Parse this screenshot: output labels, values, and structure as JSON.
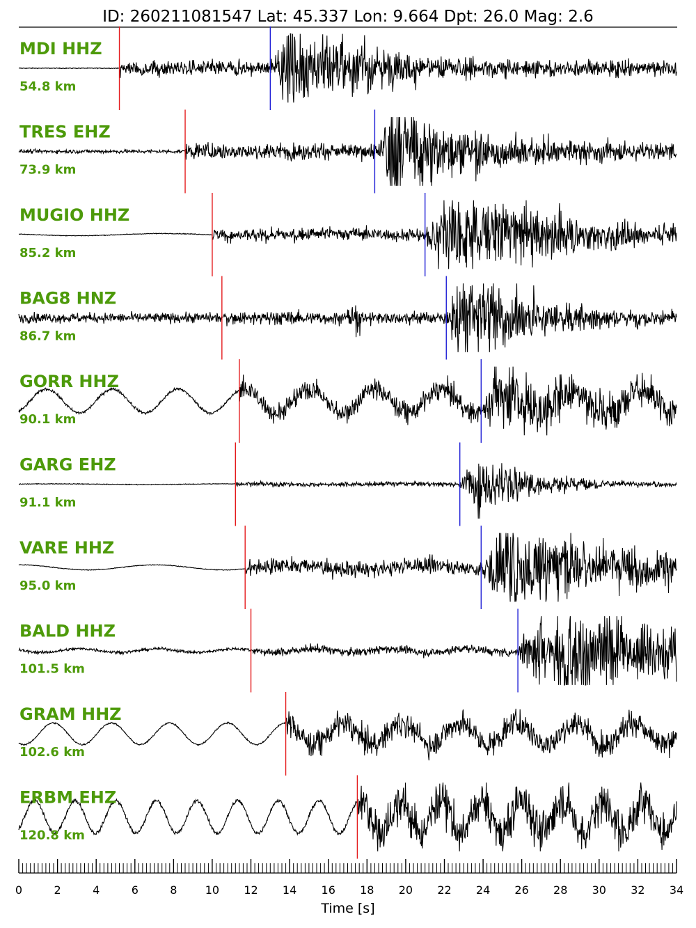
{
  "title": "ID: 260211081547 Lat:  45.337 Lon:   9.664 Dpt:    26.0 Mag:   2.6",
  "colors": {
    "label": "#4d9a0a",
    "p_pick": "#e41a1c",
    "s_pick": "#1f1fd6",
    "trace": "#000000"
  },
  "chart_data": {
    "type": "line",
    "xlabel": "Time [s]",
    "xlim": [
      0,
      34
    ],
    "xticks": [
      "0",
      "2",
      "4",
      "6",
      "8",
      "10",
      "12",
      "14",
      "16",
      "18",
      "20",
      "22",
      "24",
      "26",
      "28",
      "30",
      "32",
      "34"
    ],
    "traces": [
      {
        "station": "MDI HHZ",
        "distance": "54.8 km",
        "p_time": 5.2,
        "s_time": 13.0
      },
      {
        "station": "TRES EHZ",
        "distance": "73.9 km",
        "p_time": 8.6,
        "s_time": 18.4
      },
      {
        "station": "MUGIO HHZ",
        "distance": "85.2 km",
        "p_time": 10.0,
        "s_time": 21.0
      },
      {
        "station": "BAG8 HNZ",
        "distance": "86.7 km",
        "p_time": 10.5,
        "s_time": 22.1
      },
      {
        "station": "GORR HHZ",
        "distance": "90.1 km",
        "p_time": 11.4,
        "s_time": 23.9
      },
      {
        "station": "GARG EHZ",
        "distance": "91.1 km",
        "p_time": 11.2,
        "s_time": 22.8
      },
      {
        "station": "VARE HHZ",
        "distance": "95.0 km",
        "p_time": 11.7,
        "s_time": 23.9
      },
      {
        "station": "BALD HHZ",
        "distance": "101.5 km",
        "p_time": 12.0,
        "s_time": 25.8
      },
      {
        "station": "GRAM HHZ",
        "distance": "102.6 km",
        "p_time": 13.8,
        "s_time": null
      },
      {
        "station": "ERBM EHZ",
        "distance": "120.8 km",
        "p_time": 17.5,
        "s_time": null
      }
    ]
  }
}
